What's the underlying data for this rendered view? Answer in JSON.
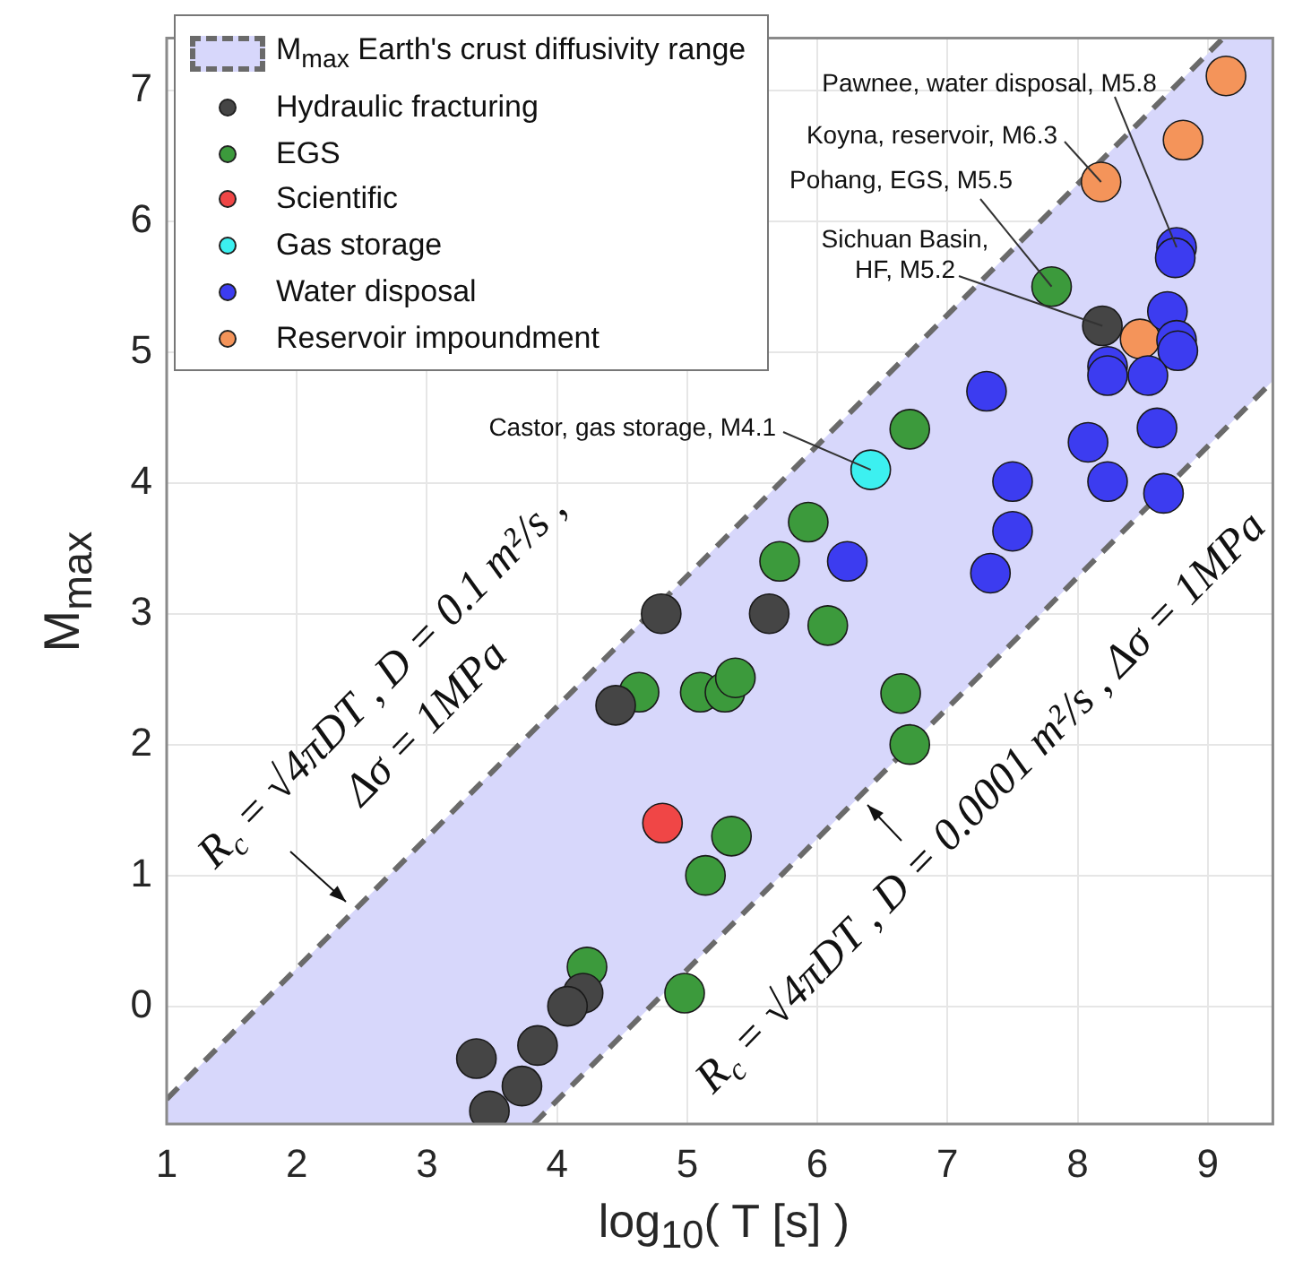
{
  "chart_data": {
    "type": "scatter",
    "xlabel": "log$_{10}$( T [s] )",
    "ylabel": "M$_{max}$",
    "xlim": [
      1,
      9.5
    ],
    "ylim": [
      -0.9,
      7.4
    ],
    "xticks": [
      1,
      2,
      3,
      4,
      5,
      6,
      7,
      8,
      9
    ],
    "yticks": [
      0,
      1,
      2,
      3,
      4,
      5,
      6,
      7
    ],
    "grid": true,
    "legend": "top left",
    "marker": "circle",
    "series": [
      {
        "name": "M$_{max}$ Earth's crust diffusivity range",
        "type": "line",
        "marker": "none",
        "color": "#6a6a6a",
        "line_style": "dashed",
        "x": [
          1,
          3.82,
          9.12,
          9.5
        ],
        "values": [
          -0.71,
          2.11,
          7.4,
          null
        ],
        "lower": [
          -0.9,
          -0.9,
          4.4,
          4.78
        ],
        "upper": [
          -0.71,
          2.11,
          7.4,
          7.4
        ]
      },
      {
        "type": "line",
        "marker": "none",
        "color": "#6a6a6a",
        "line_style": "dashed",
        "x": [
          3.82,
          9.5
        ],
        "values": [
          -0.9,
          4.78
        ]
      },
      {
        "name": "Hydraulic fracturing",
        "type": "scatter",
        "color": "#454545",
        "x": [
          4.45,
          4.2,
          4.08,
          3.85,
          3.38,
          3.73,
          3.48,
          4.8,
          5.63,
          8.19
        ],
        "values": [
          2.3,
          0.1,
          0,
          -0.3,
          -0.4,
          -0.61,
          -0.8,
          3,
          3,
          5.2
        ]
      },
      {
        "name": "EGS",
        "type": "scatter",
        "color": "#3c9a3c",
        "x": [
          7.8,
          6.71,
          5.93,
          5.71,
          6.08,
          4.63,
          5.1,
          5.29,
          5.37,
          6.64,
          6.71,
          5.34,
          5.14,
          4.98,
          4.23
        ],
        "values": [
          5.5,
          4.41,
          3.7,
          3.4,
          2.91,
          2.4,
          2.4,
          2.4,
          2.51,
          2.39,
          2,
          1.3,
          1,
          0.1,
          0.3
        ]
      },
      {
        "name": "Scientific",
        "type": "scatter",
        "color": "#f04646",
        "x": [
          4.81
        ],
        "values": [
          1.4
        ]
      },
      {
        "name": "Gas storage",
        "type": "scatter",
        "color": "#3cf0f0",
        "x": [
          6.41
        ],
        "values": [
          4.1
        ]
      },
      {
        "name": "Water disposal",
        "type": "scatter",
        "color": "#3c3cf0",
        "x": [
          8.76,
          8.75,
          8.69,
          8.76,
          8.77,
          8.23,
          8.23,
          8.54,
          7.3,
          8.08,
          8.61,
          7.5,
          8.23,
          8.66,
          7.5,
          7.33,
          6.23
        ],
        "values": [
          5.8,
          5.72,
          5.31,
          5.09,
          5.01,
          4.89,
          4.82,
          4.82,
          4.7,
          4.31,
          4.42,
          4.01,
          4.01,
          3.92,
          3.63,
          3.31,
          3.4
        ]
      },
      {
        "name": "Reservoir impoundment",
        "type": "scatter",
        "color": "#f4945a",
        "x": [
          9.14,
          8.81,
          8.18,
          8.48
        ],
        "values": [
          7.11,
          6.62,
          6.3,
          5.1
        ]
      }
    ],
    "annotations": [
      {
        "text": "Pawnee, water disposal, M5.8",
        "x": 8.76,
        "y": 5.8
      },
      {
        "text": "Koyna, reservoir, M6.3",
        "x": 8.18,
        "y": 6.3
      },
      {
        "text": "Pohang, EGS, M5.5",
        "x": 7.8,
        "y": 5.5
      },
      {
        "text": "Sichuan Basin,\nHF, M5.2",
        "x": 8.19,
        "y": 5.2
      },
      {
        "text": "Castor, gas storage, M4.1",
        "x": 6.41,
        "y": 4.1
      },
      "R$_{c}$ = √4πDT , D = 0.1 m²/s ,\nΔσ = 1MPa",
      "R$_{c}$ = √4πDT , D = 0.0001 m²/s , Δσ = 1MPa"
    ]
  }
}
